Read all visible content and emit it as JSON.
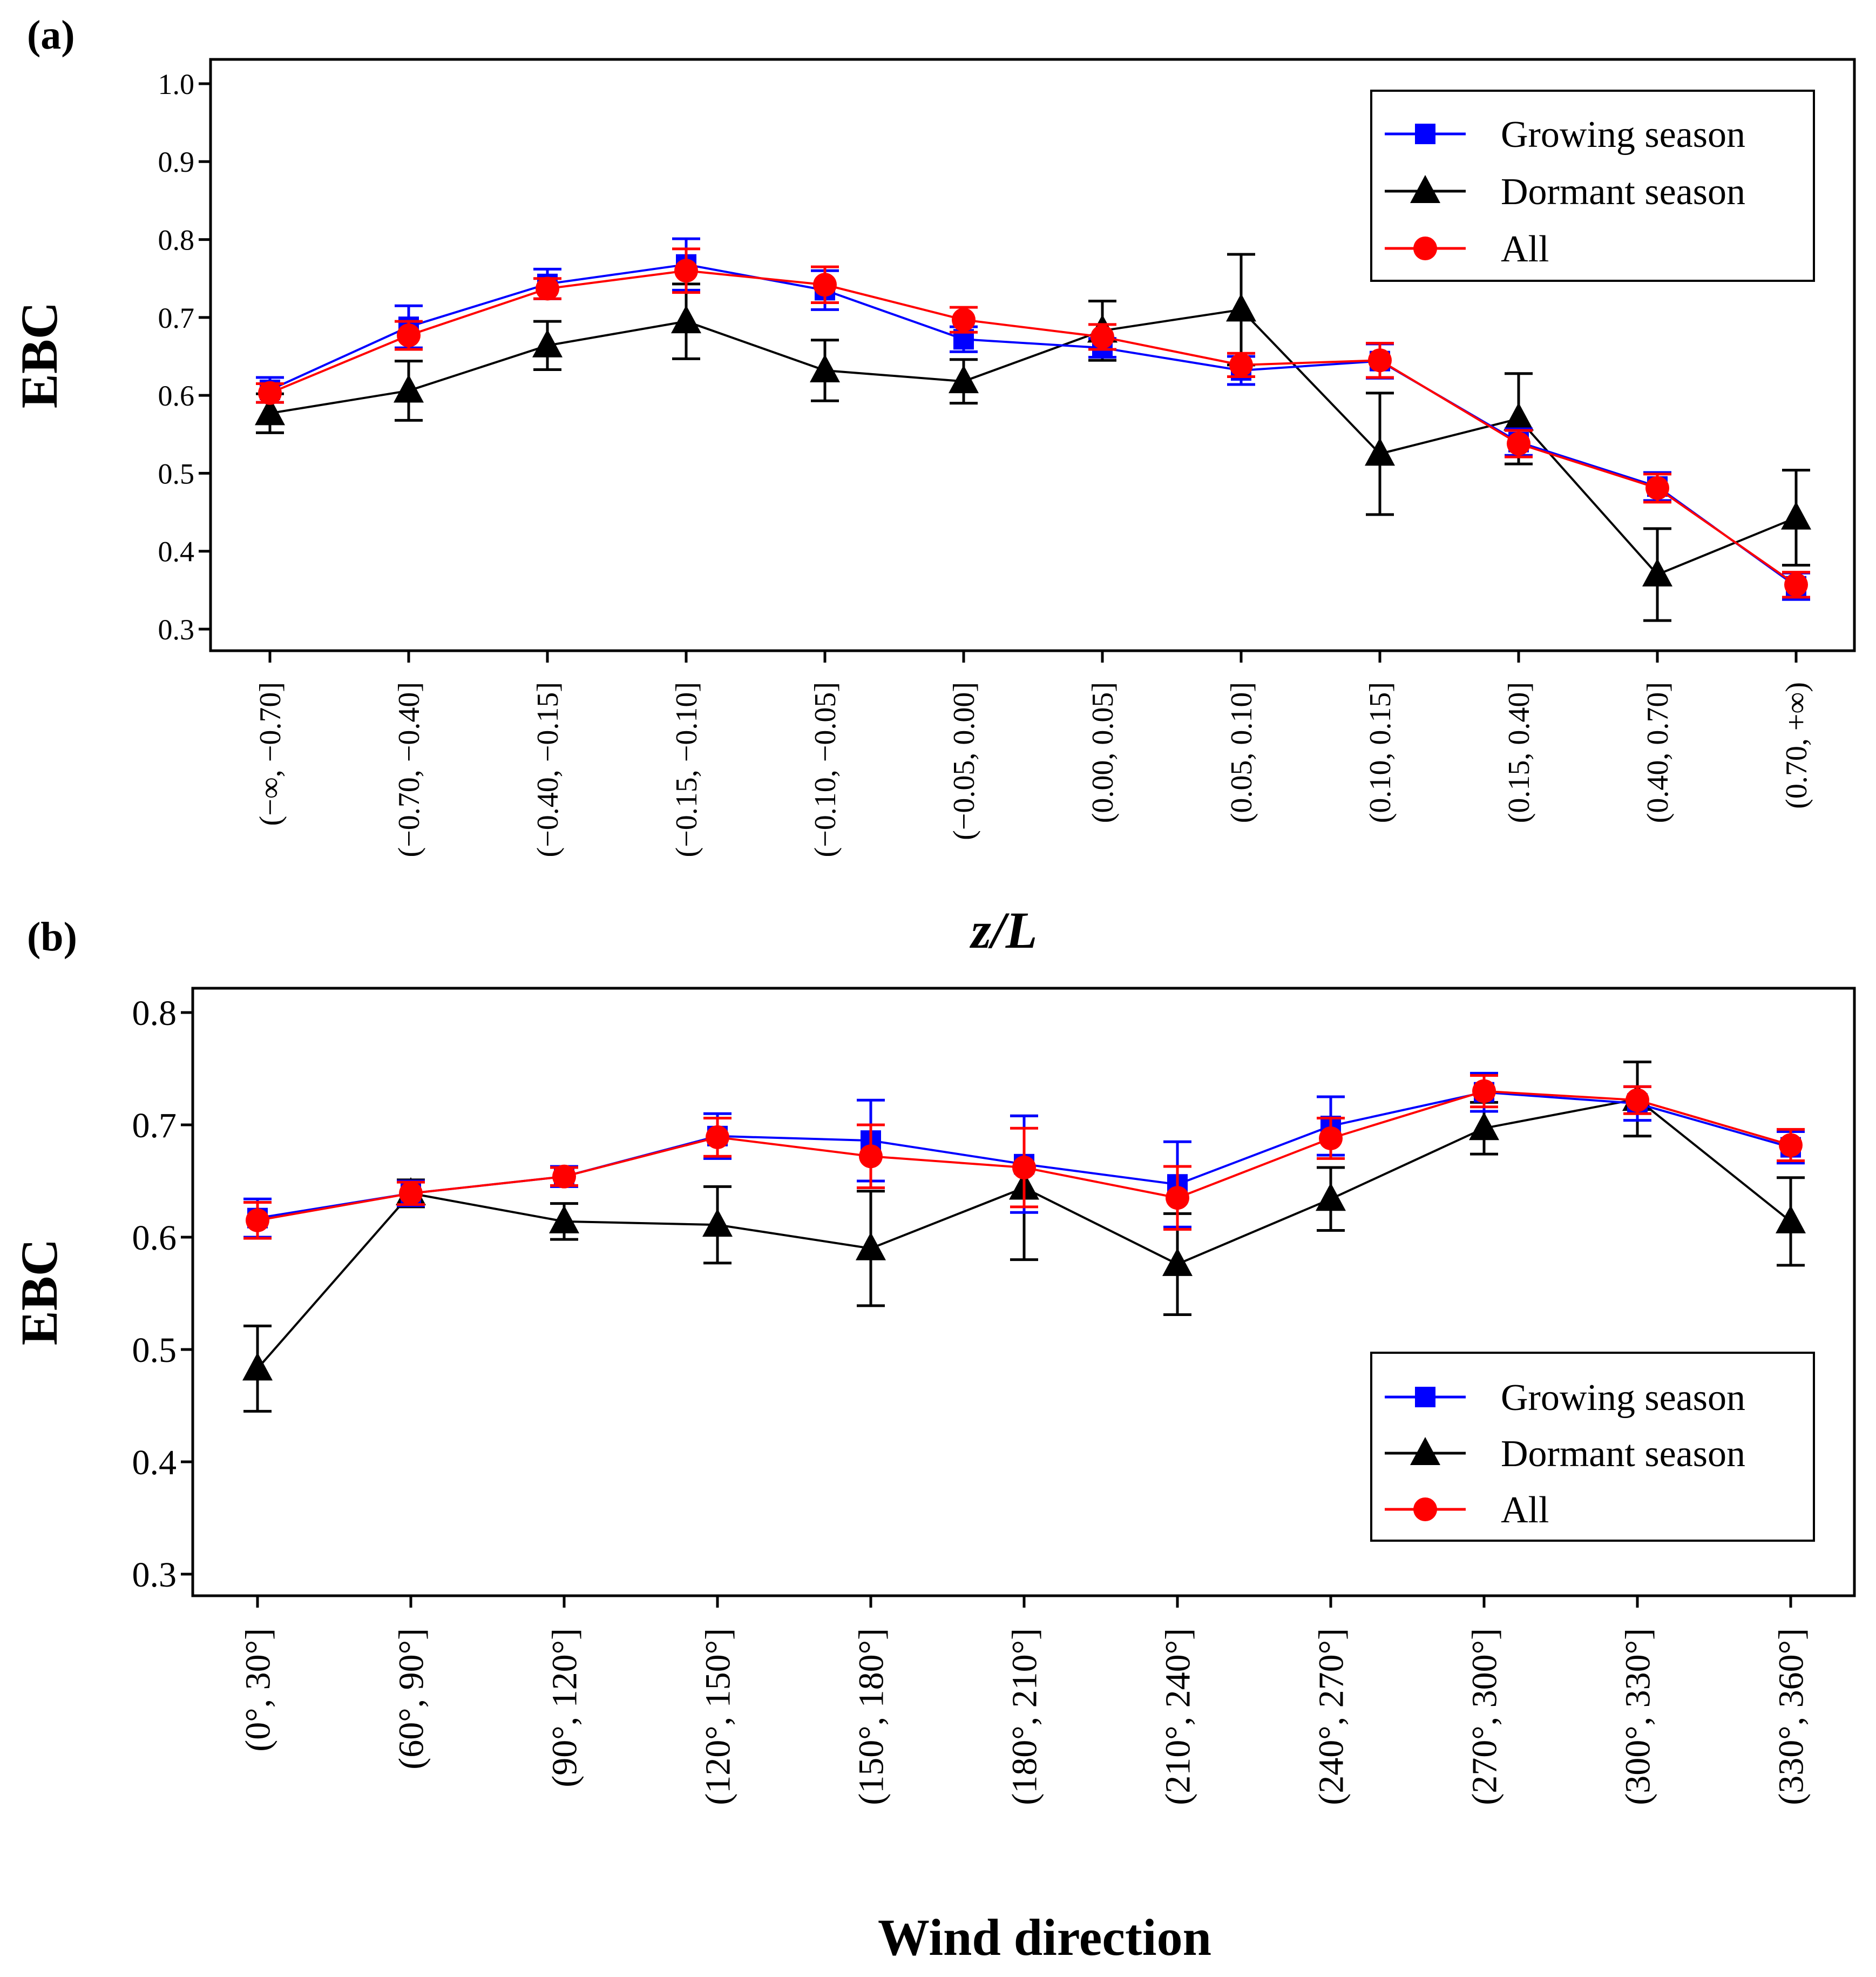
{
  "colors": {
    "growing": "#0000ff",
    "dormant": "#000000",
    "all": "#ff0000",
    "axis": "#000000",
    "background": "#ffffff"
  },
  "chart_data": [
    {
      "type": "line",
      "panel_label": "(a)",
      "title": "",
      "xlabel": "z/L",
      "xlabel_parts": [
        "z",
        "/",
        "L"
      ],
      "ylabel": "EBC",
      "ylim": [
        0.3,
        1.0
      ],
      "yticks": [
        "0.3",
        "0.4",
        "0.5",
        "0.6",
        "0.7",
        "0.8",
        "0.9",
        "1.0"
      ],
      "grid": false,
      "legend_position": "top-right",
      "categories": [
        "(−∞, −0.70]",
        "(−0.70, −0.40]",
        "(−0.40, −0.15]",
        "(−0.15, −0.10]",
        "(−0.10, −0.05]",
        "(−0.05, 0.00]",
        "(0.00, 0.05]",
        "(0.05, 0.10]",
        "(0.10, 0.15]",
        "(0.15, 0.40]",
        "(0.40, 0.70]",
        "(0.70, +∞)"
      ],
      "series": [
        {
          "name": "Growing season",
          "marker": "square",
          "color": "#0000ff",
          "values": [
            0.607,
            0.688,
            0.743,
            0.768,
            0.735,
            0.672,
            0.661,
            0.632,
            0.644,
            0.54,
            0.483,
            0.355
          ],
          "errors": [
            0.016,
            0.027,
            0.019,
            0.033,
            0.025,
            0.016,
            0.012,
            0.018,
            0.022,
            0.017,
            0.018,
            0.017
          ]
        },
        {
          "name": "Dormant season",
          "marker": "triangle",
          "color": "#000000",
          "values": [
            0.577,
            0.606,
            0.664,
            0.695,
            0.632,
            0.618,
            0.683,
            0.71,
            0.525,
            0.57,
            0.37,
            0.443
          ],
          "errors": [
            0.025,
            0.038,
            0.031,
            0.048,
            0.039,
            0.028,
            0.038,
            0.071,
            0.078,
            0.058,
            0.059,
            0.061
          ]
        },
        {
          "name": "All",
          "marker": "circle",
          "color": "#ff0000",
          "values": [
            0.603,
            0.677,
            0.737,
            0.76,
            0.742,
            0.697,
            0.675,
            0.639,
            0.645,
            0.538,
            0.481,
            0.357
          ],
          "errors": [
            0.012,
            0.018,
            0.013,
            0.028,
            0.023,
            0.016,
            0.016,
            0.015,
            0.022,
            0.017,
            0.018,
            0.016
          ]
        }
      ]
    },
    {
      "type": "line",
      "panel_label": "(b)",
      "title": "",
      "xlabel": "Wind direction",
      "ylabel": "EBC",
      "ylim": [
        0.3,
        0.8
      ],
      "yticks": [
        "0.3",
        "0.4",
        "0.5",
        "0.6",
        "0.7",
        "0.8"
      ],
      "grid": false,
      "legend_position": "bottom-right",
      "categories": [
        "(0°, 30°]",
        "(60°, 90°]",
        "(90°, 120°]",
        "(120°, 150°]",
        "(150°, 180°]",
        "(180°, 210°]",
        "(210°, 240°]",
        "(240°, 270°]",
        "(270°, 300°]",
        "(300°, 330°]",
        "(330°, 360°]"
      ],
      "series": [
        {
          "name": "Growing season",
          "marker": "square",
          "color": "#0000ff",
          "values": [
            0.617,
            0.639,
            0.654,
            0.69,
            0.686,
            0.665,
            0.647,
            0.699,
            0.729,
            0.719,
            0.68
          ],
          "errors": [
            0.017,
            0.011,
            0.009,
            0.02,
            0.036,
            0.043,
            0.038,
            0.026,
            0.017,
            0.015,
            0.014
          ]
        },
        {
          "name": "Dormant season",
          "marker": "triangle",
          "color": "#000000",
          "values": [
            0.483,
            0.639,
            0.614,
            0.611,
            0.59,
            0.644,
            0.576,
            0.634,
            0.697,
            0.723,
            0.614
          ],
          "errors": [
            0.038,
            0.012,
            0.016,
            0.034,
            0.051,
            0.064,
            0.045,
            0.028,
            0.023,
            0.033,
            0.039
          ]
        },
        {
          "name": "All",
          "marker": "circle",
          "color": "#ff0000",
          "values": [
            0.615,
            0.639,
            0.654,
            0.689,
            0.672,
            0.662,
            0.635,
            0.688,
            0.73,
            0.722,
            0.682
          ],
          "errors": [
            0.016,
            0.01,
            0.008,
            0.017,
            0.028,
            0.035,
            0.028,
            0.018,
            0.014,
            0.012,
            0.014
          ]
        }
      ]
    }
  ]
}
